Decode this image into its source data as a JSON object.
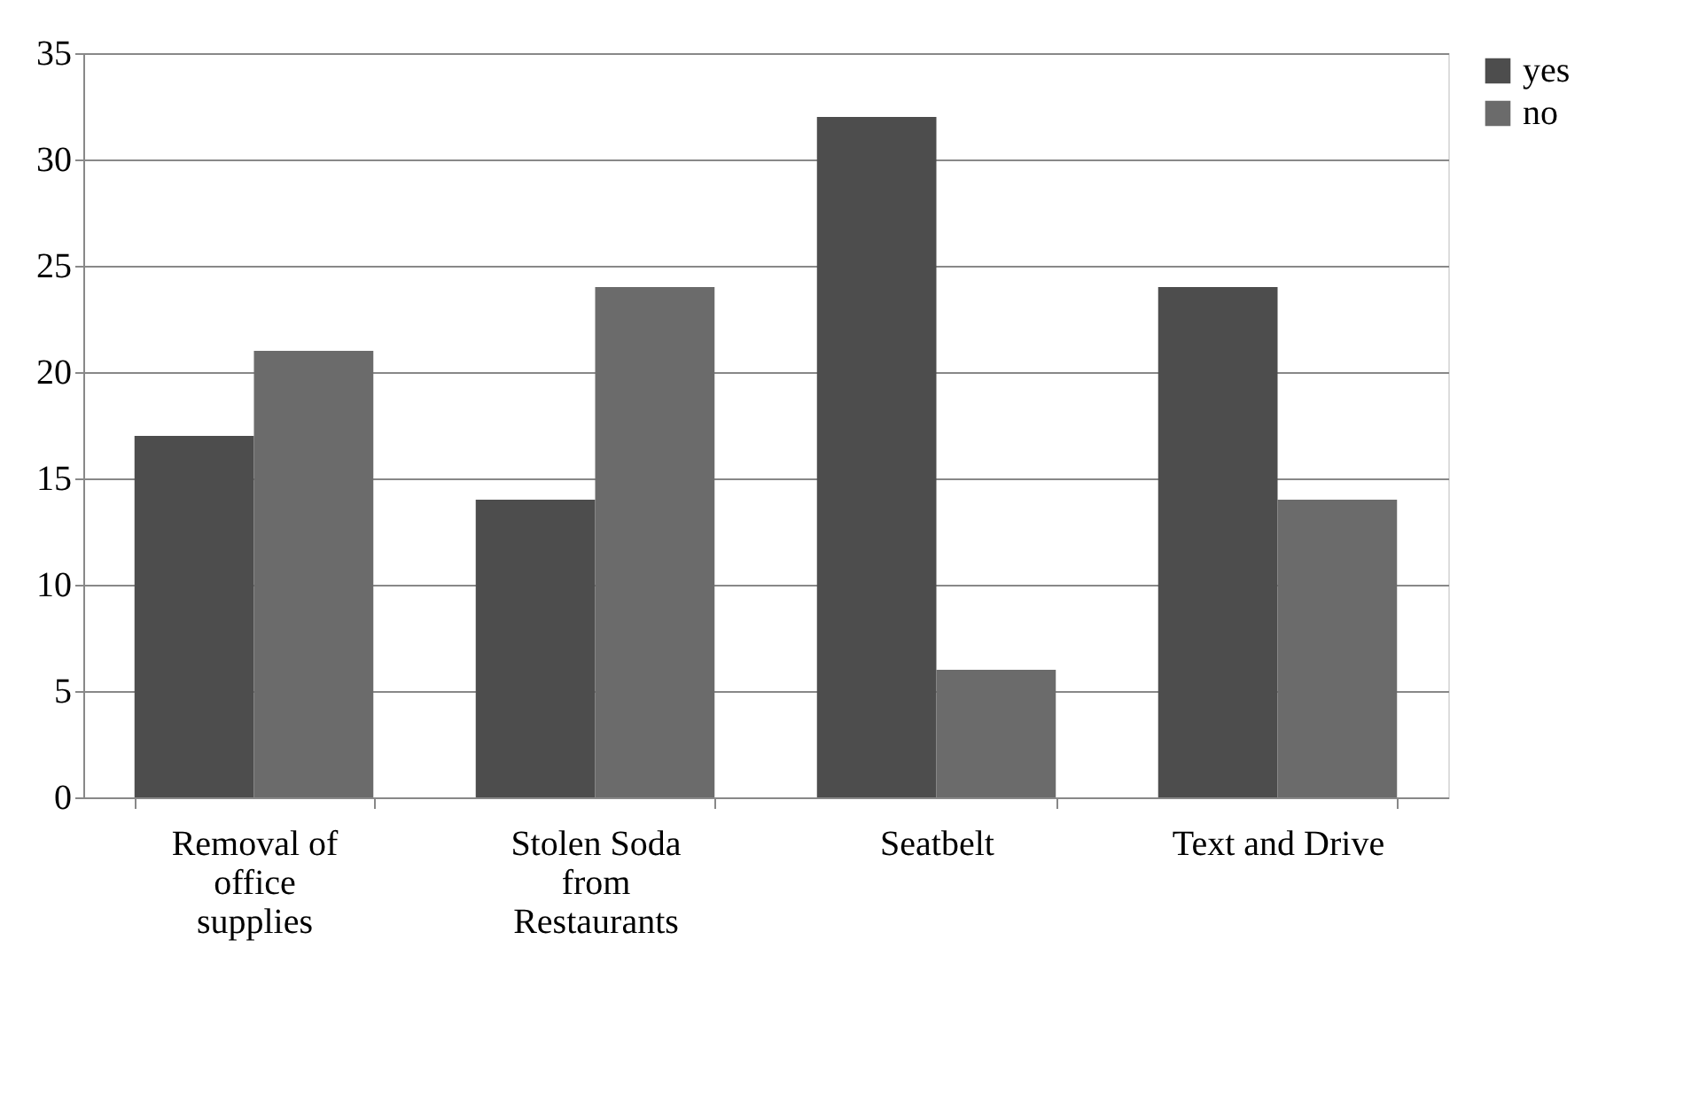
{
  "chart_data": {
    "type": "bar",
    "categories": [
      "Removal of office supplies",
      "Stolen Soda from Restaurants",
      "Seatbelt",
      "Text and Drive"
    ],
    "series": [
      {
        "name": "yes",
        "color": "#4d4d4d",
        "values": [
          17,
          14,
          32,
          24
        ]
      },
      {
        "name": "no",
        "color": "#6b6b6b",
        "values": [
          21,
          24,
          6,
          14
        ]
      }
    ],
    "ylim": [
      0,
      35
    ],
    "yticks": [
      0,
      5,
      10,
      15,
      20,
      25,
      30,
      35
    ],
    "grid": "y",
    "legend": "right"
  }
}
